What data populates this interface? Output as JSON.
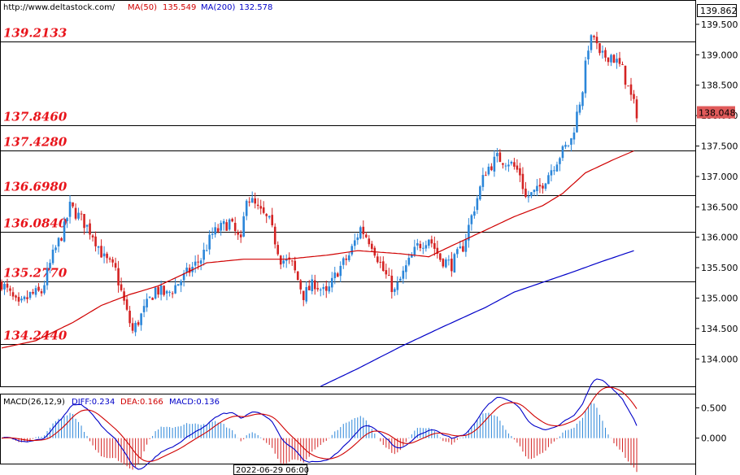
{
  "header": {
    "source": "http://www.deltastock.com/",
    "ma50_label": "MA(50)",
    "ma50_value": "135.549",
    "ma200_label": "MA(200)",
    "ma200_value": "132.578",
    "ma50_color": "#d00000",
    "ma200_color": "#0000c8"
  },
  "price_panel": {
    "top_readout": "139.862",
    "current_price": "138.048",
    "current_price_value": 138.048,
    "ylim": [
      133.55,
      139.9
    ],
    "yticks": [
      "139.500",
      "139.000",
      "138.500",
      "138.000",
      "137.500",
      "137.000",
      "136.500",
      "136.000",
      "135.500",
      "135.000",
      "134.500",
      "134.000"
    ],
    "ytick_values": [
      139.5,
      139.0,
      138.5,
      138.0,
      137.5,
      137.0,
      136.5,
      136.0,
      135.5,
      135.0,
      134.5,
      134.0
    ],
    "levels": [
      {
        "label": "139.2133",
        "value": 139.2133
      },
      {
        "label": "137.8460",
        "value": 137.846
      },
      {
        "label": "137.4280",
        "value": 137.428
      },
      {
        "label": "136.6980",
        "value": 136.698
      },
      {
        "label": "136.0840",
        "value": 136.084
      },
      {
        "label": "135.2770",
        "value": 135.277
      },
      {
        "label": "134.2440",
        "value": 134.244
      }
    ],
    "level_color": "#e8141b"
  },
  "macd_panel": {
    "title": "MACD(26,12,9)",
    "diff_label": "DIFF:0.234",
    "dea_label": "DEA:0.166",
    "macd_label": "MACD:0.136",
    "yticks": [
      "0.500",
      "0.000"
    ],
    "ytick_values": [
      0.5,
      0.0
    ],
    "ylim": [
      -0.42,
      0.72
    ]
  },
  "time_axis": {
    "cursor_label": "2022-06-29 06:00"
  },
  "chart_data": {
    "type": "candlestick",
    "series": [
      {
        "name": "MA(50)",
        "color": "#d00000",
        "anchors": [
          [
            0,
            134.18
          ],
          [
            12,
            134.3
          ],
          [
            25,
            134.6
          ],
          [
            35,
            134.88
          ],
          [
            45,
            135.06
          ],
          [
            55,
            135.2
          ],
          [
            65,
            135.42
          ],
          [
            72,
            135.58
          ],
          [
            85,
            135.64
          ],
          [
            100,
            135.64
          ],
          [
            115,
            135.71
          ],
          [
            125,
            135.78
          ],
          [
            140,
            135.73
          ],
          [
            150,
            135.68
          ],
          [
            158,
            135.86
          ],
          [
            170,
            136.12
          ],
          [
            180,
            136.34
          ],
          [
            190,
            136.52
          ],
          [
            197,
            136.72
          ],
          [
            205,
            137.06
          ],
          [
            215,
            137.28
          ],
          [
            222,
            137.42
          ]
        ]
      },
      {
        "name": "MA(200)",
        "color": "#0000c8",
        "anchors": [
          [
            112,
            133.55
          ],
          [
            125,
            133.84
          ],
          [
            140,
            134.2
          ],
          [
            155,
            134.53
          ],
          [
            170,
            134.85
          ],
          [
            180,
            135.1
          ],
          [
            190,
            135.26
          ],
          [
            200,
            135.42
          ],
          [
            210,
            135.59
          ],
          [
            222,
            135.78
          ]
        ]
      }
    ],
    "close_anchors": [
      [
        0,
        135.25
      ],
      [
        6,
        134.85
      ],
      [
        10,
        135.05
      ],
      [
        14,
        135.1
      ],
      [
        18,
        135.7
      ],
      [
        22,
        136.15
      ],
      [
        24,
        136.5
      ],
      [
        28,
        136.3
      ],
      [
        32,
        136.05
      ],
      [
        36,
        135.65
      ],
      [
        40,
        135.45
      ],
      [
        44,
        134.75
      ],
      [
        46,
        134.45
      ],
      [
        50,
        134.8
      ],
      [
        54,
        135.15
      ],
      [
        58,
        135.05
      ],
      [
        62,
        135.25
      ],
      [
        66,
        135.45
      ],
      [
        70,
        135.65
      ],
      [
        74,
        136.05
      ],
      [
        80,
        136.25
      ],
      [
        84,
        135.9
      ],
      [
        86,
        136.7
      ],
      [
        90,
        136.45
      ],
      [
        94,
        136.25
      ],
      [
        98,
        135.65
      ],
      [
        102,
        135.55
      ],
      [
        106,
        135.05
      ],
      [
        110,
        135.25
      ],
      [
        114,
        135.05
      ],
      [
        118,
        135.45
      ],
      [
        122,
        135.7
      ],
      [
        126,
        136.15
      ],
      [
        130,
        135.9
      ],
      [
        134,
        135.45
      ],
      [
        138,
        135.1
      ],
      [
        142,
        135.5
      ],
      [
        146,
        135.85
      ],
      [
        150,
        136.0
      ],
      [
        154,
        135.65
      ],
      [
        158,
        135.55
      ],
      [
        162,
        135.85
      ],
      [
        166,
        136.5
      ],
      [
        170,
        137.1
      ],
      [
        174,
        137.3
      ],
      [
        178,
        137.25
      ],
      [
        182,
        137.05
      ],
      [
        184,
        136.65
      ],
      [
        188,
        136.75
      ],
      [
        192,
        137.05
      ],
      [
        196,
        137.35
      ],
      [
        200,
        137.6
      ],
      [
        204,
        138.45
      ],
      [
        206,
        139.15
      ],
      [
        208,
        139.3
      ],
      [
        210,
        138.95
      ],
      [
        214,
        139.0
      ],
      [
        218,
        138.75
      ],
      [
        221,
        138.3
      ],
      [
        223,
        138.05
      ]
    ],
    "xlabel": "",
    "ylabel": ""
  }
}
